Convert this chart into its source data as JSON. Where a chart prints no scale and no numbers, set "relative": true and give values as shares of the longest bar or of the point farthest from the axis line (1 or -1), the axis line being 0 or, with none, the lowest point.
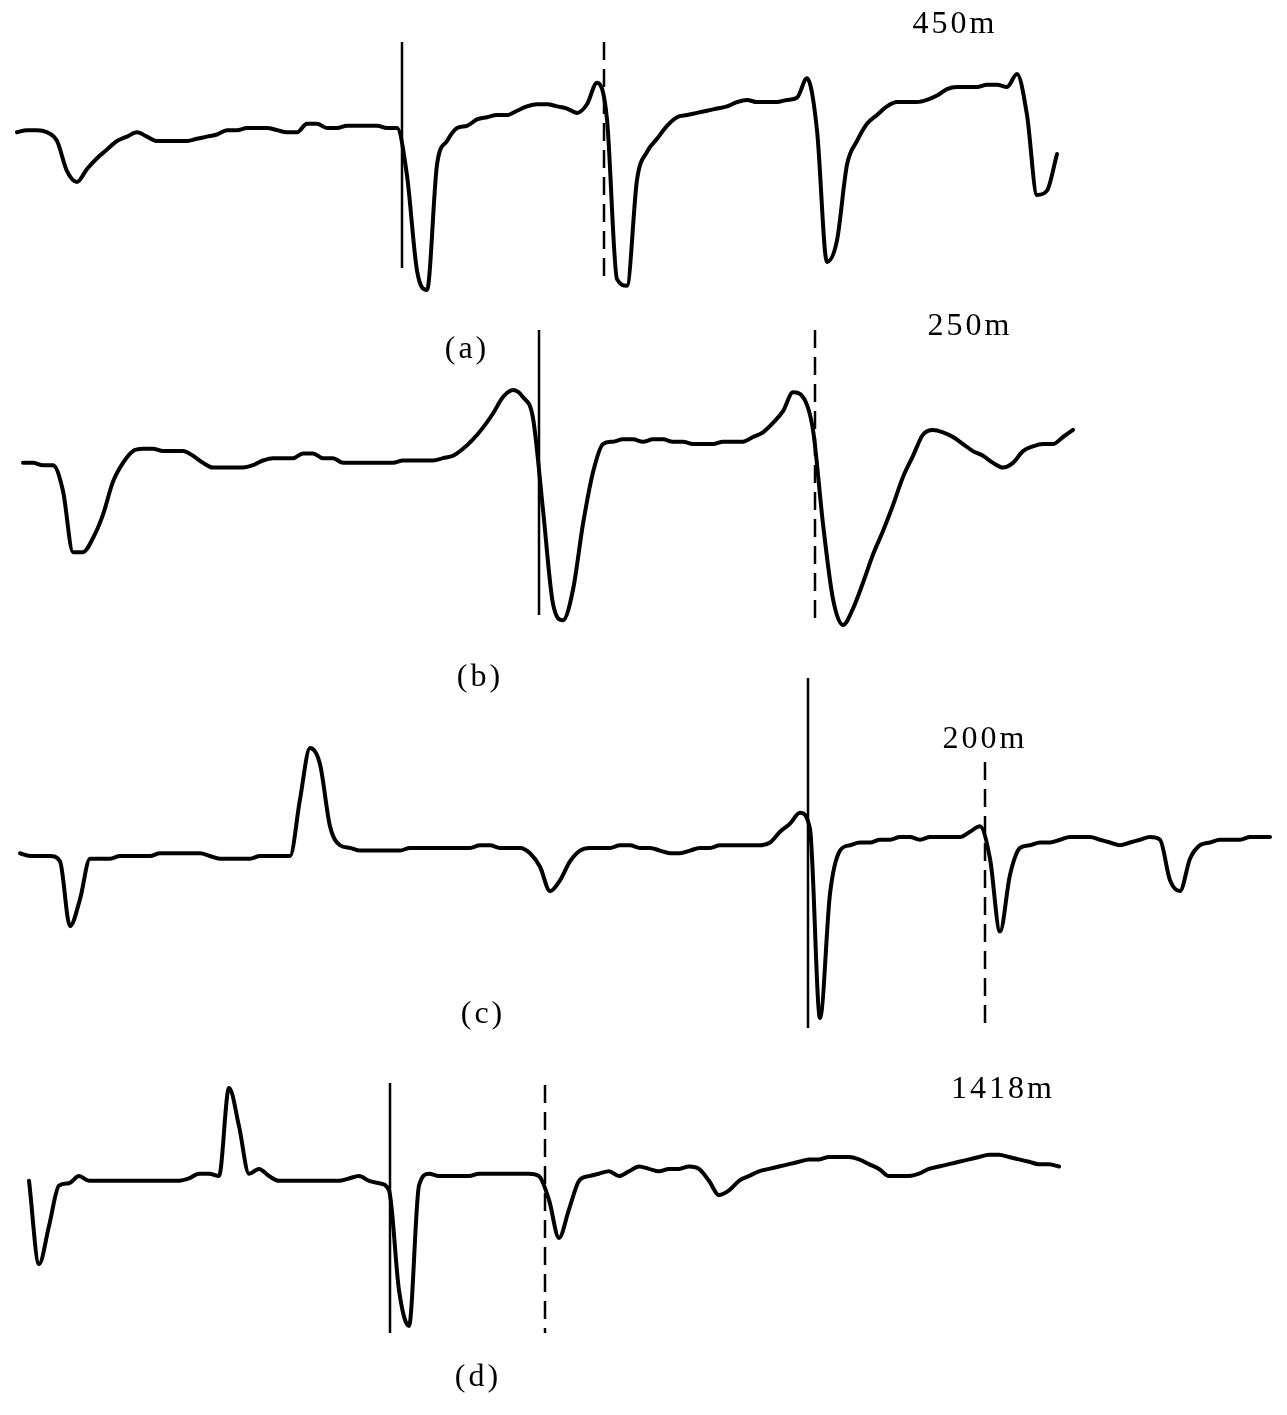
{
  "chart_data": [
    {
      "type": "line",
      "relative": true,
      "color": "#000000",
      "line_style": "solid",
      "categories": [
        null,
        null,
        null,
        null,
        null,
        null,
        null,
        null,
        null,
        null,
        null,
        null,
        null,
        null,
        null,
        null,
        null,
        null,
        null,
        null,
        null,
        null,
        null,
        null,
        null,
        null,
        null,
        null,
        null,
        null,
        null,
        null,
        null,
        null,
        null,
        null,
        null,
        null,
        null,
        null,
        null,
        null,
        null,
        null,
        null,
        null,
        null,
        null,
        null,
        null,
        null,
        null,
        null,
        null,
        null,
        null,
        null,
        null,
        null,
        null,
        null,
        null,
        null,
        null,
        null,
        null,
        null,
        null,
        null,
        null,
        null,
        null,
        null,
        null,
        null,
        null,
        null,
        null,
        null,
        null,
        null,
        null,
        null,
        null,
        null,
        null,
        null,
        null,
        null,
        null,
        null,
        null,
        null,
        null,
        null,
        null,
        null,
        null,
        null,
        null,
        null,
        null,
        null,
        null,
        null
      ],
      "values": [
        0.73,
        0.74,
        0.74,
        0.73,
        0.69,
        0.55,
        0.5,
        0.56,
        0.61,
        0.65,
        0.69,
        0.71,
        0.73,
        0.71,
        0.69,
        0.69,
        0.69,
        0.69,
        0.7,
        0.71,
        0.72,
        0.74,
        0.74,
        0.75,
        0.75,
        0.75,
        0.74,
        0.73,
        0.73,
        0.77,
        0.77,
        0.75,
        0.75,
        0.76,
        0.76,
        0.76,
        0.76,
        0.75,
        0.75,
        0.53,
        0.09,
        0,
        0.58,
        0.69,
        0.75,
        0.76,
        0.79,
        0.8,
        0.81,
        0.81,
        0.83,
        0.85,
        0.86,
        0.86,
        0.85,
        0.84,
        0.82,
        0.86,
        0.96,
        0.79,
        0.05,
        0.02,
        0.51,
        0.64,
        0.7,
        0.76,
        0.8,
        0.81,
        0.82,
        0.83,
        0.84,
        0.85,
        0.87,
        0.88,
        0.87,
        0.87,
        0.87,
        0.88,
        0.89,
        0.98,
        0.74,
        0.13,
        0.23,
        0.58,
        0.69,
        0.77,
        0.81,
        0.85,
        0.87,
        0.87,
        0.87,
        0.88,
        0.9,
        0.93,
        0.94,
        0.94,
        0.94,
        0.95,
        0.95,
        0.94,
        1,
        0.81,
        0.44,
        0.46,
        0.63
      ],
      "annotations": [
        "450m",
        "(a)"
      ]
    },
    {
      "type": "line",
      "relative": true,
      "color": "#000000",
      "line_style": "solid",
      "categories": [
        null,
        null,
        null,
        null,
        null,
        null,
        null,
        null,
        null,
        null,
        null,
        null,
        null,
        null,
        null,
        null,
        null,
        null,
        null,
        null,
        null,
        null,
        null,
        null,
        null,
        null,
        null,
        null,
        null,
        null,
        null,
        null,
        null,
        null,
        null,
        null,
        null,
        null,
        null,
        null,
        null,
        null,
        null,
        null,
        null,
        null,
        null,
        null,
        null,
        null,
        null,
        null,
        null,
        null,
        null,
        null,
        null,
        null,
        null,
        null,
        null,
        null,
        null,
        null,
        null,
        null,
        null,
        null,
        null,
        null,
        null,
        null,
        null,
        null,
        null,
        null,
        null,
        null,
        null,
        null,
        null,
        null,
        null,
        null,
        null,
        null,
        null,
        null,
        null,
        null,
        null,
        null,
        null,
        null,
        null,
        null,
        null,
        null,
        null,
        null,
        null,
        null,
        null,
        null,
        null,
        null
      ],
      "values": [
        0.69,
        0.69,
        0.68,
        0.68,
        0.57,
        0.31,
        0.31,
        0.37,
        0.47,
        0.61,
        0.69,
        0.74,
        0.75,
        0.75,
        0.74,
        0.74,
        0.74,
        0.72,
        0.69,
        0.67,
        0.67,
        0.67,
        0.67,
        0.68,
        0.7,
        0.71,
        0.71,
        0.71,
        0.73,
        0.73,
        0.71,
        0.71,
        0.69,
        0.69,
        0.69,
        0.69,
        0.69,
        0.69,
        0.7,
        0.7,
        0.7,
        0.7,
        0.71,
        0.72,
        0.75,
        0.79,
        0.84,
        0.9,
        0.97,
        1,
        0.97,
        0.88,
        0.49,
        0.09,
        0.02,
        0.15,
        0.43,
        0.65,
        0.77,
        0.78,
        0.79,
        0.79,
        0.78,
        0.79,
        0.79,
        0.78,
        0.78,
        0.77,
        0.77,
        0.77,
        0.78,
        0.78,
        0.78,
        0.8,
        0.82,
        0.86,
        0.91,
        0.99,
        0.97,
        0.83,
        0.43,
        0.11,
        0,
        0.07,
        0.18,
        0.3,
        0.4,
        0.51,
        0.63,
        0.72,
        0.81,
        0.83,
        0.82,
        0.8,
        0.77,
        0.74,
        0.72,
        0.69,
        0.67,
        0.69,
        0.74,
        0.76,
        0.77,
        0.77,
        0.8,
        0.83
      ],
      "annotations": [
        "250m",
        "(b)"
      ]
    },
    {
      "type": "line",
      "relative": true,
      "color": "#000000",
      "line_style": "solid",
      "categories": [
        null,
        null,
        null,
        null,
        null,
        null,
        null,
        null,
        null,
        null,
        null,
        null,
        null,
        null,
        null,
        null,
        null,
        null,
        null,
        null,
        null,
        null,
        null,
        null,
        null,
        null,
        null,
        null,
        null,
        null,
        null,
        null,
        null,
        null,
        null,
        null,
        null,
        null,
        null,
        null,
        null,
        null,
        null,
        null,
        null,
        null,
        null,
        null,
        null,
        null,
        null,
        null,
        null,
        null,
        null,
        null,
        null,
        null,
        null,
        null,
        null,
        null,
        null,
        null,
        null,
        null,
        null,
        null,
        null,
        null,
        null,
        null,
        null,
        null,
        null,
        null,
        null,
        null,
        null,
        null,
        null,
        null,
        null,
        null,
        null,
        null,
        null,
        null,
        null,
        null,
        null,
        null,
        null,
        null,
        null,
        null,
        null,
        null,
        null,
        null,
        null,
        null,
        null,
        null,
        null,
        null,
        null,
        null,
        null,
        null,
        null,
        null,
        null,
        null,
        null,
        null,
        null,
        null,
        null,
        null,
        null,
        null,
        null,
        null,
        null,
        null
      ],
      "values": [
        0.61,
        0.6,
        0.6,
        0.6,
        0.58,
        0.34,
        0.44,
        0.59,
        0.59,
        0.59,
        0.6,
        0.6,
        0.6,
        0.6,
        0.61,
        0.61,
        0.61,
        0.61,
        0.61,
        0.6,
        0.59,
        0.59,
        0.59,
        0.59,
        0.6,
        0.6,
        0.6,
        0.6,
        0.81,
        1,
        0.94,
        0.71,
        0.64,
        0.63,
        0.62,
        0.62,
        0.62,
        0.62,
        0.62,
        0.63,
        0.63,
        0.63,
        0.63,
        0.63,
        0.63,
        0.63,
        0.64,
        0.64,
        0.63,
        0.63,
        0.63,
        0.61,
        0.56,
        0.47,
        0.51,
        0.58,
        0.62,
        0.63,
        0.63,
        0.63,
        0.64,
        0.64,
        0.63,
        0.63,
        0.62,
        0.61,
        0.61,
        0.62,
        0.63,
        0.63,
        0.64,
        0.64,
        0.64,
        0.64,
        0.64,
        0.65,
        0.69,
        0.72,
        0.76,
        0.7,
        0,
        0.46,
        0.62,
        0.64,
        0.65,
        0.65,
        0.66,
        0.66,
        0.67,
        0.67,
        0.66,
        0.67,
        0.67,
        0.67,
        0.67,
        0.69,
        0.71,
        0.59,
        0.32,
        0.53,
        0.63,
        0.64,
        0.65,
        0.65,
        0.66,
        0.67,
        0.67,
        0.67,
        0.66,
        0.65,
        0.64,
        0.65,
        0.66,
        0.67,
        0.66,
        0.51,
        0.47,
        0.59,
        0.64,
        0.65,
        0.66,
        0.66,
        0.66,
        0.67,
        0.67,
        0.67
      ],
      "annotations": [
        "200m",
        "(c)"
      ]
    },
    {
      "type": "line",
      "relative": true,
      "color": "#000000",
      "line_style": "solid",
      "categories": [
        null,
        null,
        null,
        null,
        null,
        null,
        null,
        null,
        null,
        null,
        null,
        null,
        null,
        null,
        null,
        null,
        null,
        null,
        null,
        null,
        null,
        null,
        null,
        null,
        null,
        null,
        null,
        null,
        null,
        null,
        null,
        null,
        null,
        null,
        null,
        null,
        null,
        null,
        null,
        null,
        null,
        null,
        null,
        null,
        null,
        null,
        null,
        null,
        null,
        null,
        null,
        null,
        null,
        null,
        null,
        null,
        null,
        null,
        null,
        null,
        null,
        null,
        null,
        null,
        null,
        null,
        null,
        null,
        null,
        null,
        null,
        null,
        null,
        null,
        null,
        null,
        null,
        null,
        null,
        null,
        null,
        null,
        null,
        null,
        null,
        null,
        null,
        null,
        null,
        null,
        null,
        null,
        null,
        null,
        null,
        null,
        null,
        null,
        null,
        null,
        null,
        null,
        null,
        null
      ],
      "values": [
        0.61,
        0.26,
        0.42,
        0.59,
        0.6,
        0.63,
        0.61,
        0.61,
        0.61,
        0.61,
        0.61,
        0.61,
        0.61,
        0.61,
        0.61,
        0.61,
        0.62,
        0.64,
        0.64,
        0.63,
        1,
        0.84,
        0.64,
        0.66,
        0.63,
        0.61,
        0.61,
        0.61,
        0.61,
        0.61,
        0.61,
        0.61,
        0.62,
        0.63,
        0.61,
        0.6,
        0.57,
        0.15,
        0,
        0.59,
        0.64,
        0.63,
        0.63,
        0.63,
        0.63,
        0.64,
        0.64,
        0.64,
        0.64,
        0.64,
        0.64,
        0.63,
        0.53,
        0.37,
        0.49,
        0.61,
        0.63,
        0.64,
        0.65,
        0.63,
        0.65,
        0.67,
        0.66,
        0.65,
        0.66,
        0.66,
        0.67,
        0.66,
        0.61,
        0.55,
        0.57,
        0.61,
        0.63,
        0.65,
        0.66,
        0.67,
        0.68,
        0.69,
        0.7,
        0.7,
        0.71,
        0.71,
        0.71,
        0.7,
        0.68,
        0.66,
        0.63,
        0.63,
        0.63,
        0.64,
        0.66,
        0.67,
        0.68,
        0.69,
        0.7,
        0.71,
        0.72,
        0.72,
        0.71,
        0.7,
        0.69,
        0.68,
        0.68,
        0.67
      ],
      "annotations": [
        "1418m",
        "(d)"
      ]
    }
  ]
}
